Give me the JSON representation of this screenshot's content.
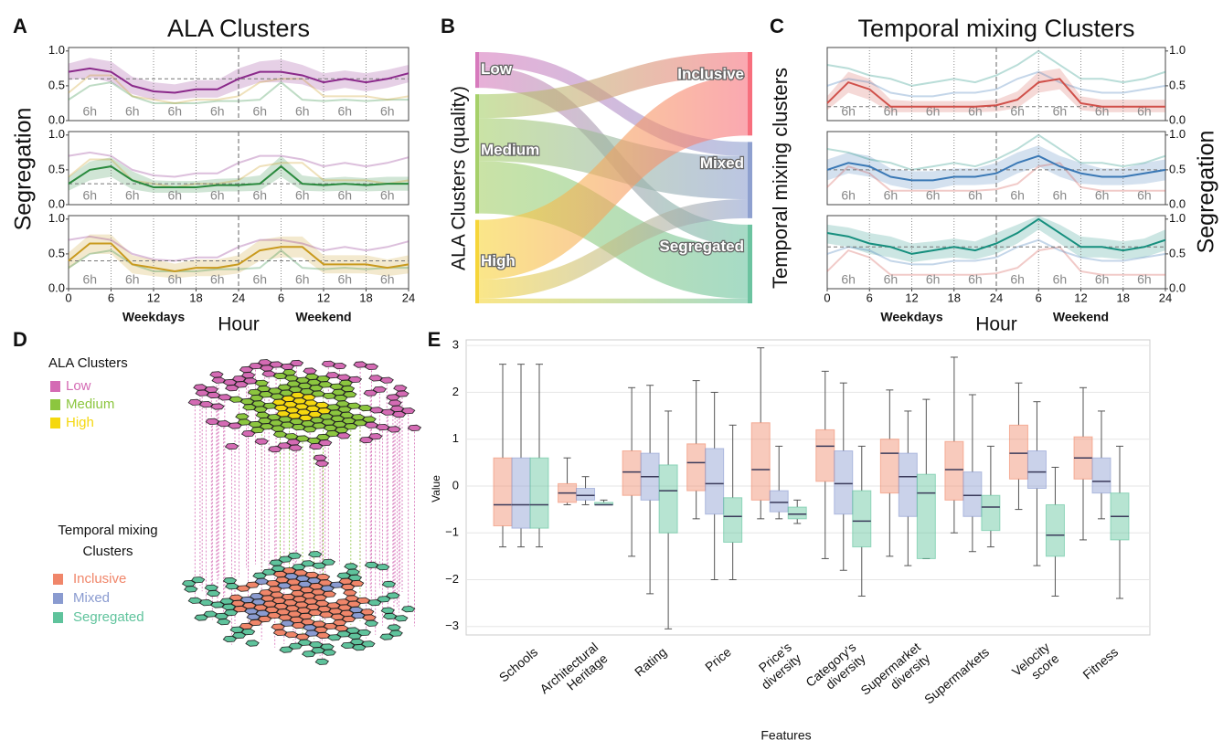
{
  "panel_labels": [
    "A",
    "B",
    "C",
    "D",
    "E"
  ],
  "chart_data": [
    {
      "type": "line",
      "title": "ALA Clusters",
      "ylabel": "Segregation",
      "xlabel": "Hour",
      "period_labels": [
        "Weekdays",
        "Weekend"
      ],
      "interval_label": "6h",
      "yaxis_position": "left",
      "x": [
        0,
        3,
        6,
        9,
        12,
        15,
        18,
        21,
        24,
        27,
        30,
        33,
        36,
        39,
        42,
        45,
        48
      ],
      "xlim": [
        0,
        48
      ],
      "xticks": [
        0,
        6,
        12,
        18,
        24,
        {
          "value": 30,
          "label": "6"
        },
        {
          "value": 36,
          "label": "12"
        },
        {
          "value": 42,
          "label": "18"
        },
        {
          "value": 48,
          "label": "24"
        }
      ],
      "ylim": [
        0,
        1.05
      ],
      "yticks": [
        {
          "value": 0,
          "label": "0.0"
        },
        {
          "value": 0.5,
          "label": "0.5"
        },
        {
          "value": 1,
          "label": "1.0"
        }
      ],
      "series": [
        {
          "color": "#8b2a8b",
          "reference": 0.6,
          "values": [
            0.7,
            0.75,
            0.7,
            0.5,
            0.42,
            0.4,
            0.45,
            0.45,
            0.6,
            0.7,
            0.7,
            0.65,
            0.55,
            0.6,
            0.55,
            0.6,
            0.68
          ],
          "lower": [
            0.58,
            0.62,
            0.55,
            0.38,
            0.3,
            0.3,
            0.33,
            0.33,
            0.45,
            0.55,
            0.55,
            0.52,
            0.42,
            0.47,
            0.42,
            0.47,
            0.55
          ],
          "upper": [
            0.82,
            0.9,
            0.85,
            0.63,
            0.55,
            0.52,
            0.58,
            0.58,
            0.75,
            0.85,
            0.88,
            0.8,
            0.68,
            0.72,
            0.68,
            0.73,
            0.8
          ]
        },
        {
          "color": "#2a8a3e",
          "reference": 0.3,
          "values": [
            0.3,
            0.5,
            0.55,
            0.35,
            0.25,
            0.25,
            0.25,
            0.28,
            0.28,
            0.3,
            0.55,
            0.3,
            0.28,
            0.3,
            0.28,
            0.3,
            0.3
          ],
          "lower": [
            0.2,
            0.35,
            0.4,
            0.22,
            0.17,
            0.17,
            0.17,
            0.19,
            0.19,
            0.2,
            0.4,
            0.2,
            0.19,
            0.2,
            0.19,
            0.2,
            0.2
          ],
          "upper": [
            0.4,
            0.62,
            0.68,
            0.48,
            0.35,
            0.34,
            0.34,
            0.37,
            0.38,
            0.42,
            0.7,
            0.42,
            0.38,
            0.4,
            0.38,
            0.4,
            0.4
          ]
        },
        {
          "color": "#c99a1e",
          "reference": 0.4,
          "values": [
            0.4,
            0.65,
            0.65,
            0.35,
            0.3,
            0.25,
            0.3,
            0.3,
            0.35,
            0.55,
            0.6,
            0.6,
            0.35,
            0.35,
            0.35,
            0.3,
            0.35
          ],
          "lower": [
            0.28,
            0.5,
            0.5,
            0.22,
            0.18,
            0.15,
            0.18,
            0.18,
            0.22,
            0.4,
            0.45,
            0.45,
            0.22,
            0.22,
            0.22,
            0.18,
            0.22
          ],
          "upper": [
            0.52,
            0.78,
            0.78,
            0.48,
            0.42,
            0.36,
            0.42,
            0.42,
            0.48,
            0.7,
            0.75,
            0.75,
            0.48,
            0.48,
            0.48,
            0.42,
            0.48
          ]
        }
      ]
    },
    {
      "type": "sankey",
      "ylabel": "ALA Clusters  (quality)",
      "sources": [
        {
          "name": "Low",
          "color": "#d77bbd"
        },
        {
          "name": "Medium",
          "color": "#a6d06a"
        },
        {
          "name": "High",
          "color": "#f6d53a"
        }
      ],
      "targets": [
        {
          "name": "Inclusive",
          "color": "#f76f7d"
        },
        {
          "name": "Mixed",
          "color": "#8ea0cf"
        },
        {
          "name": "Segregated",
          "color": "#6cc3a0"
        }
      ],
      "flows": [
        [
          0,
          6,
          9
        ],
        [
          10,
          18,
          22
        ],
        [
          25,
          8,
          2
        ]
      ]
    },
    {
      "type": "line",
      "title": "Temporal mixing Clusters",
      "ylabel": "Segregation",
      "ylabel_left": "Temporal mixing clusters",
      "xlabel": "Hour",
      "period_labels": [
        "Weekdays",
        "Weekend"
      ],
      "interval_label": "6h",
      "yaxis_position": "right",
      "x": [
        0,
        3,
        6,
        9,
        12,
        15,
        18,
        21,
        24,
        27,
        30,
        33,
        36,
        39,
        42,
        45,
        48
      ],
      "xlim": [
        0,
        48
      ],
      "xticks": [
        0,
        6,
        12,
        18,
        24,
        {
          "value": 30,
          "label": "6"
        },
        {
          "value": 36,
          "label": "12"
        },
        {
          "value": 42,
          "label": "18"
        },
        {
          "value": 48,
          "label": "24"
        }
      ],
      "ylim": [
        0,
        1.05
      ],
      "yticks": [
        {
          "value": 0,
          "label": "0.0"
        },
        {
          "value": 0.5,
          "label": "0.5"
        },
        {
          "value": 1,
          "label": "1.0"
        }
      ],
      "series": [
        {
          "color": "#d0504a",
          "reference": 0.2,
          "values": [
            0.25,
            0.55,
            0.45,
            0.2,
            0.2,
            0.2,
            0.2,
            0.2,
            0.22,
            0.3,
            0.55,
            0.6,
            0.25,
            0.2,
            0.2,
            0.2,
            0.2
          ],
          "lower": [
            0.15,
            0.4,
            0.3,
            0.12,
            0.12,
            0.12,
            0.12,
            0.12,
            0.13,
            0.18,
            0.4,
            0.45,
            0.15,
            0.12,
            0.12,
            0.12,
            0.12
          ],
          "upper": [
            0.35,
            0.7,
            0.6,
            0.3,
            0.28,
            0.28,
            0.28,
            0.28,
            0.3,
            0.42,
            0.7,
            0.75,
            0.35,
            0.3,
            0.3,
            0.3,
            0.3
          ]
        },
        {
          "color": "#3a78b5",
          "reference": 0.5,
          "values": [
            0.5,
            0.6,
            0.55,
            0.4,
            0.35,
            0.35,
            0.4,
            0.4,
            0.45,
            0.6,
            0.7,
            0.55,
            0.45,
            0.4,
            0.4,
            0.45,
            0.5
          ],
          "lower": [
            0.35,
            0.45,
            0.4,
            0.28,
            0.22,
            0.22,
            0.28,
            0.28,
            0.3,
            0.45,
            0.55,
            0.4,
            0.3,
            0.28,
            0.28,
            0.3,
            0.35
          ],
          "upper": [
            0.65,
            0.75,
            0.7,
            0.52,
            0.48,
            0.48,
            0.52,
            0.52,
            0.6,
            0.75,
            0.85,
            0.7,
            0.6,
            0.52,
            0.52,
            0.6,
            0.65
          ]
        },
        {
          "color": "#168f7e",
          "reference": 0.6,
          "values": [
            0.8,
            0.75,
            0.65,
            0.6,
            0.5,
            0.55,
            0.6,
            0.55,
            0.65,
            0.8,
            1.0,
            0.8,
            0.6,
            0.6,
            0.55,
            0.6,
            0.7
          ],
          "lower": [
            0.65,
            0.6,
            0.5,
            0.45,
            0.38,
            0.42,
            0.45,
            0.42,
            0.5,
            0.65,
            0.85,
            0.65,
            0.45,
            0.45,
            0.42,
            0.45,
            0.55
          ],
          "upper": [
            0.92,
            0.88,
            0.8,
            0.75,
            0.65,
            0.68,
            0.72,
            0.68,
            0.8,
            0.92,
            1.05,
            0.92,
            0.75,
            0.72,
            0.68,
            0.72,
            0.85
          ]
        }
      ]
    },
    {
      "type": "box",
      "xlabel": "Features",
      "ylabel": "Value",
      "grid": true,
      "categories": [
        [
          "Schools"
        ],
        [
          "Architectural",
          "Heritage"
        ],
        [
          "Rating"
        ],
        [
          "Price"
        ],
        [
          "Price's",
          "diversity"
        ],
        [
          "Category's",
          "diversity"
        ],
        [
          "Supermarket",
          "diversity"
        ],
        [
          "Supermarkets"
        ],
        [
          "Velocity",
          "score"
        ],
        [
          "Fitness"
        ]
      ],
      "ylim": [
        -3.18,
        3.12
      ],
      "yticks": [
        {
          "value": -3,
          "label": "−3"
        },
        {
          "value": -2,
          "label": "−2"
        },
        {
          "value": -1,
          "label": "−1"
        },
        0,
        1,
        2,
        3
      ],
      "series": [
        {
          "color": "#f08a6a",
          "whislo": [
            -1.3,
            -0.4,
            -1.5,
            -0.7,
            -0.7,
            -1.55,
            -1.5,
            -1.0,
            -0.5,
            -1.15
          ],
          "q1": [
            -0.85,
            -0.35,
            -0.2,
            -0.1,
            -0.3,
            0.1,
            -0.15,
            -0.3,
            0.15,
            0.15
          ],
          "median": [
            -0.4,
            -0.15,
            0.3,
            0.5,
            0.35,
            0.85,
            0.7,
            0.35,
            0.7,
            0.6
          ],
          "q3": [
            0.6,
            0.05,
            0.75,
            0.9,
            1.35,
            1.2,
            1.0,
            0.95,
            1.3,
            1.05
          ],
          "whishi": [
            2.6,
            0.6,
            2.1,
            2.25,
            2.95,
            2.45,
            2.05,
            2.75,
            2.2,
            2.1
          ]
        },
        {
          "color": "#8a9bd0",
          "whislo": [
            -1.3,
            -0.4,
            -2.3,
            -2.0,
            -0.7,
            -1.8,
            -1.7,
            -1.4,
            -1.7,
            -0.7
          ],
          "q1": [
            -0.9,
            -0.3,
            -0.3,
            -0.6,
            -0.55,
            -0.6,
            -0.65,
            -0.65,
            -0.05,
            -0.15
          ],
          "median": [
            -0.4,
            -0.2,
            0.2,
            0.05,
            -0.35,
            0.05,
            0.2,
            -0.2,
            0.3,
            0.1
          ],
          "q3": [
            0.6,
            -0.05,
            0.7,
            0.8,
            -0.1,
            0.75,
            0.7,
            0.3,
            0.75,
            0.6
          ],
          "whishi": [
            2.6,
            0.2,
            2.15,
            2.0,
            0.85,
            2.2,
            1.6,
            1.95,
            1.8,
            1.6
          ]
        },
        {
          "color": "#5fc39c",
          "whislo": [
            -1.3,
            -0.4,
            -3.05,
            -2.0,
            -0.8,
            -2.35,
            -1.55,
            -1.3,
            -2.35,
            -2.4
          ],
          "q1": [
            -0.9,
            -0.4,
            -1.0,
            -1.2,
            -0.7,
            -1.3,
            -1.55,
            -0.95,
            -1.5,
            -1.15
          ],
          "median": [
            -0.4,
            -0.4,
            -0.1,
            -0.65,
            -0.6,
            -0.75,
            -0.15,
            -0.45,
            -1.05,
            -0.65
          ],
          "q3": [
            0.6,
            -0.35,
            0.45,
            -0.25,
            -0.45,
            -0.1,
            0.25,
            -0.2,
            -0.4,
            -0.15
          ],
          "whishi": [
            2.6,
            -0.3,
            1.6,
            1.3,
            -0.3,
            0.85,
            1.85,
            0.85,
            0.4,
            0.85
          ]
        }
      ]
    }
  ],
  "diagram": {
    "legend_groups": [
      {
        "title": [
          "ALA Clusters"
        ],
        "items": [
          {
            "label": "Low",
            "color": "#d46bb4"
          },
          {
            "label": "Medium",
            "color": "#8cc63f"
          },
          {
            "label": "High",
            "color": "#f5d80f"
          }
        ]
      },
      {
        "title": [
          "Temporal mixing",
          "Clusters"
        ],
        "items": [
          {
            "label": "Inclusive",
            "color": "#f0866a"
          },
          {
            "label": "Mixed",
            "color": "#8a9bd0"
          },
          {
            "label": "Segregated",
            "color": "#5fc39c"
          }
        ]
      }
    ]
  }
}
